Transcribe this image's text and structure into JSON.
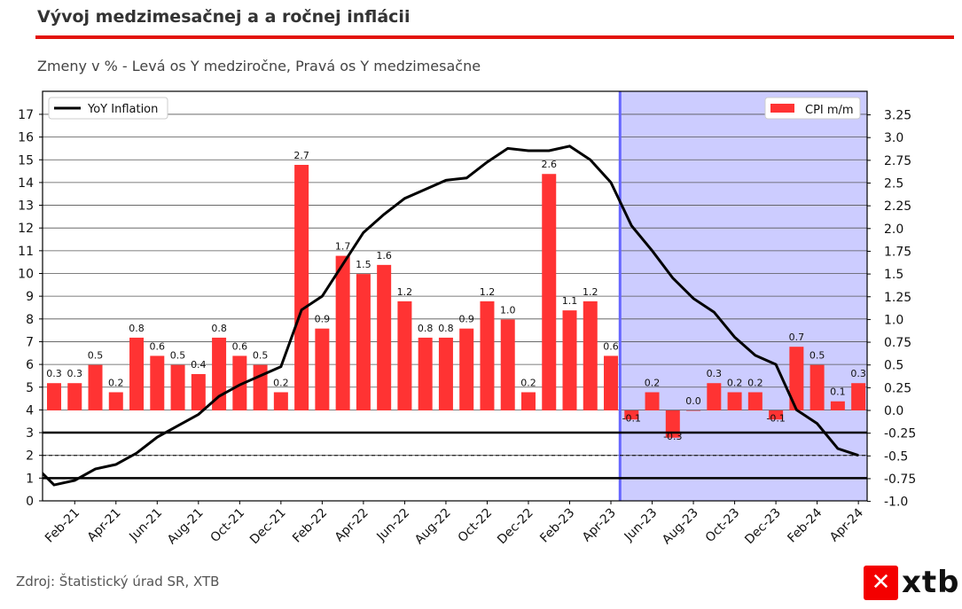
{
  "header": {
    "title": "Vývoj medzimesačnej a a ročnej inflácii",
    "subtitle": "Zmeny v % - Levá os Y medziročne, Pravá os Y medzimesačne"
  },
  "footer": {
    "source": "Zdroj: Štatistický úrad SR, XTB",
    "logo": "xtb"
  },
  "chart_data": {
    "type": "bar+line",
    "categories": [
      "Jan-21",
      "Feb-21",
      "Mar-21",
      "Apr-21",
      "May-21",
      "Jun-21",
      "Jul-21",
      "Aug-21",
      "Sep-21",
      "Oct-21",
      "Nov-21",
      "Dec-21",
      "Jan-22",
      "Feb-22",
      "Mar-22",
      "Apr-22",
      "May-22",
      "Jun-22",
      "Jul-22",
      "Aug-22",
      "Sep-22",
      "Oct-22",
      "Nov-22",
      "Dec-22",
      "Jan-23",
      "Feb-23",
      "Mar-23",
      "Apr-23",
      "May-23",
      "Jun-23",
      "Jul-23",
      "Aug-23",
      "Sep-23",
      "Oct-23",
      "Nov-23",
      "Dec-23",
      "Jan-24",
      "Feb-24",
      "Mar-24",
      "Apr-24"
    ],
    "xtick_labels": [
      "Feb-21",
      "Apr-21",
      "Jun-21",
      "Aug-21",
      "Oct-21",
      "Dec-21",
      "Feb-22",
      "Apr-22",
      "Jun-22",
      "Aug-22",
      "Oct-22",
      "Dec-22",
      "Feb-23",
      "Apr-23",
      "Jun-23",
      "Aug-23",
      "Oct-23",
      "Dec-23",
      "Feb-24",
      "Apr-24"
    ],
    "series": [
      {
        "name": "CPI m/m",
        "type": "bar",
        "axis": "right",
        "color": "#ff3333",
        "values": [
          0.3,
          0.3,
          0.5,
          0.2,
          0.8,
          0.6,
          0.5,
          0.4,
          0.8,
          0.6,
          0.5,
          0.2,
          2.7,
          0.9,
          1.7,
          1.5,
          1.6,
          1.2,
          0.8,
          0.8,
          0.9,
          1.2,
          1.0,
          0.2,
          2.6,
          1.1,
          1.2,
          0.6,
          -0.1,
          0.2,
          -0.3,
          0.0,
          0.3,
          0.2,
          0.2,
          -0.1,
          0.7,
          0.5,
          0.1,
          0.3
        ]
      },
      {
        "name": "YoY Inflation",
        "type": "line",
        "axis": "left",
        "color": "#000000",
        "prior_value_dec_20": 1.6,
        "values": [
          0.7,
          0.9,
          1.4,
          1.6,
          2.1,
          2.8,
          3.3,
          3.8,
          4.6,
          5.1,
          5.5,
          5.9,
          8.4,
          9.0,
          10.4,
          11.8,
          12.6,
          13.3,
          13.7,
          14.1,
          14.2,
          14.9,
          15.5,
          15.4,
          15.4,
          15.6,
          15.0,
          14.0,
          12.1,
          11.0,
          9.8,
          8.9,
          8.3,
          7.2,
          6.4,
          6.0,
          4.0,
          3.4,
          2.3,
          2.0
        ]
      }
    ],
    "left_axis": {
      "range": [
        0,
        18
      ],
      "ticks": [
        0,
        1,
        2,
        3,
        4,
        5,
        6,
        7,
        8,
        9,
        10,
        11,
        12,
        13,
        14,
        15,
        16,
        17
      ],
      "grid": true
    },
    "right_axis": {
      "range": [
        -1.0,
        3.5
      ],
      "ticks": [
        "-1.0",
        "-0.75",
        "-0.5",
        "-0.25",
        "0.0",
        "0.25",
        "0.5",
        "0.75",
        "1.0",
        "1.25",
        "1.5",
        "1.75",
        "2.0",
        "2.25",
        "2.5",
        "2.75",
        "3.0",
        "3.25"
      ]
    },
    "reference_lines": [
      {
        "y": 3,
        "style": "solid"
      },
      {
        "y": 2,
        "style": "dashed"
      },
      {
        "y": 1,
        "style": "solid"
      }
    ],
    "shaded_region": {
      "from": "May-23",
      "to": "Apr-24",
      "color": "#ccccff",
      "border": "#6666ff"
    },
    "legends": [
      {
        "label": "YoY Inflation",
        "position": "top-left"
      },
      {
        "label": "CPI m/m",
        "position": "top-right"
      }
    ]
  }
}
